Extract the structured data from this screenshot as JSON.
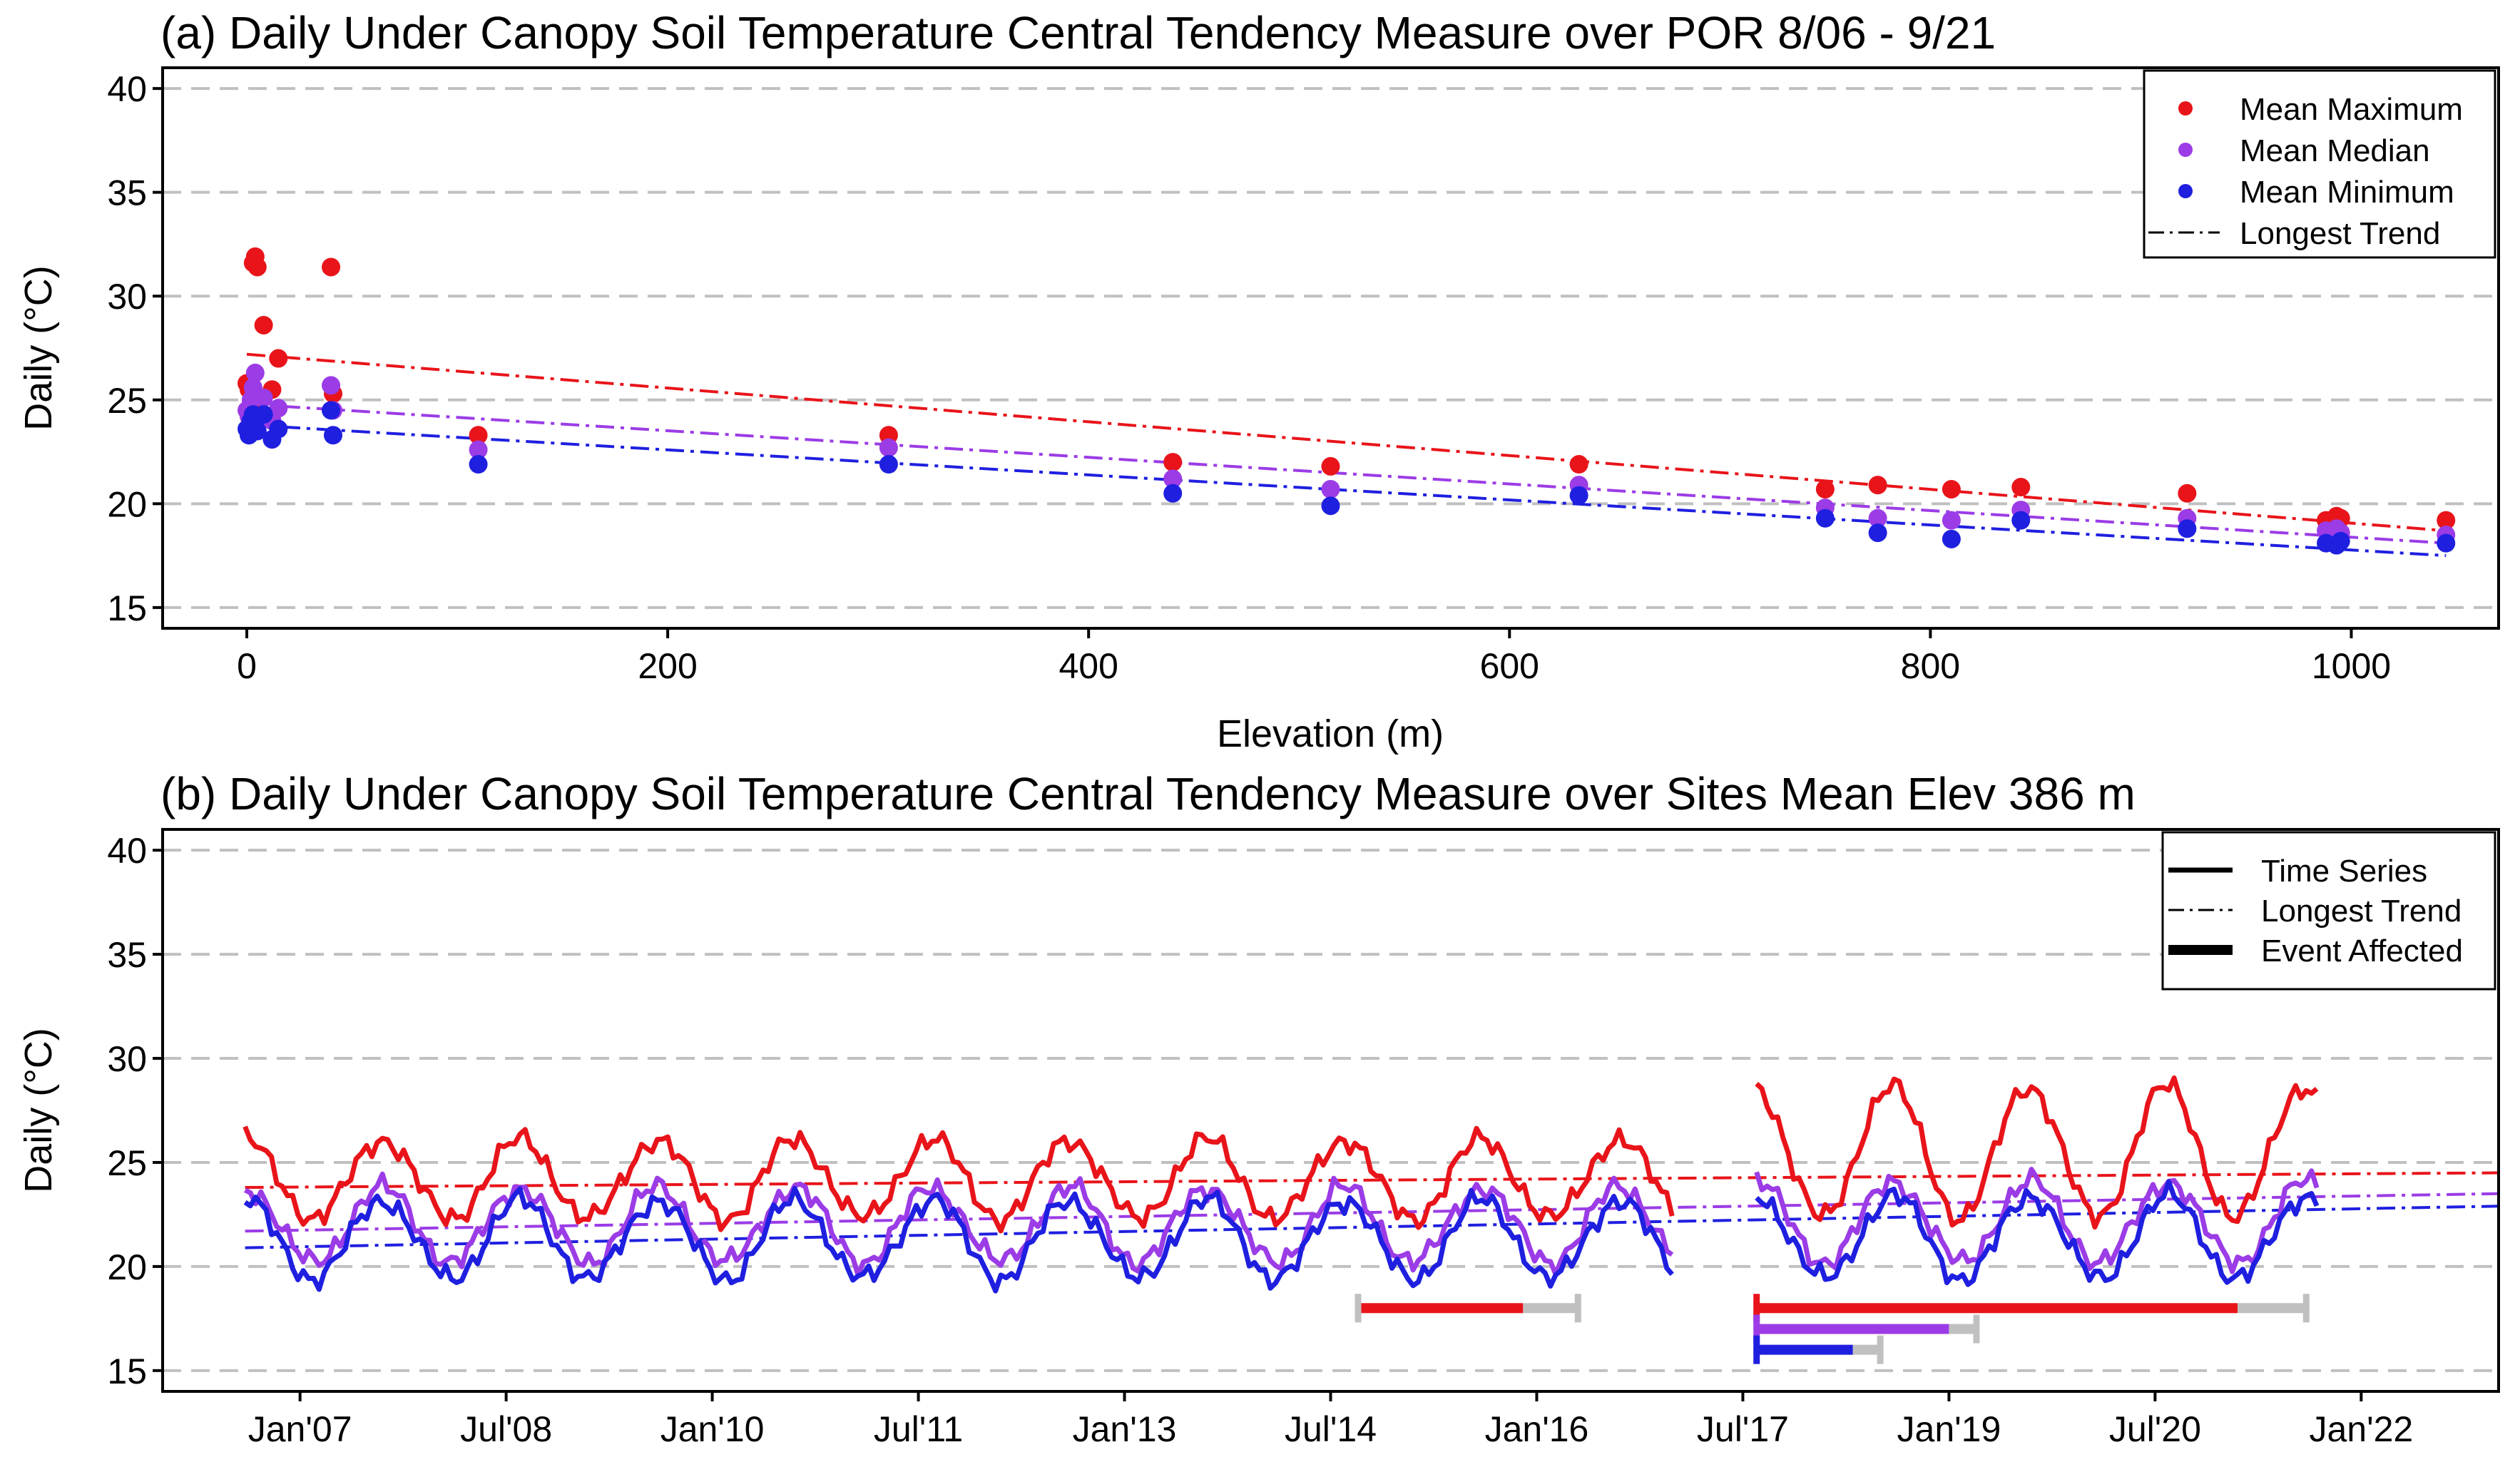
{
  "chart_data": [
    {
      "type": "scatter",
      "title": "(a) Daily Under Canopy Soil Temperature Central Tendency Measure over POR 8/06 - 9/21",
      "xlabel": "Elevation (m)",
      "ylabel": "Daily (°C)",
      "xlim": [
        -40,
        1070
      ],
      "ylim": [
        14,
        41
      ],
      "xticks": [
        0,
        200,
        400,
        600,
        800,
        1000
      ],
      "yticks": [
        15,
        20,
        25,
        30,
        35,
        40
      ],
      "grid": "horizontal dashed",
      "legend_position": "top-right",
      "legend": [
        "Mean Maximum",
        "Mean Median",
        "Mean Minimum",
        "Longest Trend"
      ],
      "colors": {
        "max": "#e8141a",
        "median": "#9b3ce6",
        "min": "#1f1fe0",
        "grid": "#c0c0c0"
      },
      "series": [
        {
          "name": "Mean Maximum",
          "color": "#e8141a",
          "x": [
            0,
            1,
            2,
            3,
            4,
            5,
            8,
            12,
            15,
            40,
            41,
            110,
            305,
            440,
            515,
            633,
            750,
            775,
            810,
            843,
            922,
            988,
            993,
            995,
            1045
          ],
          "y": [
            25.8,
            25.5,
            24.8,
            31.6,
            31.9,
            31.4,
            28.6,
            25.5,
            27.0,
            31.4,
            25.3,
            23.3,
            23.3,
            22.0,
            21.8,
            21.9,
            20.7,
            20.9,
            20.7,
            20.8,
            20.5,
            19.2,
            19.4,
            19.3,
            19.2
          ],
          "trend": [
            27.2,
            18.7
          ]
        },
        {
          "name": "Mean Median",
          "color": "#9b3ce6",
          "x": [
            0,
            1,
            2,
            3,
            4,
            5,
            8,
            12,
            15,
            40,
            41,
            110,
            305,
            440,
            515,
            633,
            750,
            775,
            810,
            843,
            922,
            988,
            993,
            995,
            1045
          ],
          "y": [
            24.5,
            24.2,
            25.0,
            25.6,
            26.3,
            25.2,
            25.1,
            24.0,
            24.6,
            25.7,
            24.5,
            22.6,
            22.7,
            21.2,
            20.7,
            20.9,
            19.8,
            19.3,
            19.2,
            19.7,
            19.3,
            18.7,
            18.8,
            18.6,
            18.5
          ],
          "trend": [
            24.8,
            18.1
          ]
        },
        {
          "name": "Mean Minimum",
          "color": "#1f1fe0",
          "x": [
            0,
            1,
            2,
            3,
            4,
            5,
            8,
            12,
            15,
            40,
            41,
            110,
            305,
            440,
            515,
            633,
            750,
            775,
            810,
            843,
            922,
            988,
            993,
            995,
            1045
          ],
          "y": [
            23.6,
            23.3,
            24.0,
            24.3,
            24.0,
            23.5,
            24.3,
            23.1,
            23.6,
            24.5,
            23.3,
            21.9,
            21.9,
            20.5,
            19.9,
            20.4,
            19.3,
            18.6,
            18.3,
            19.2,
            18.8,
            18.1,
            18.0,
            18.2,
            18.1
          ],
          "trend": [
            23.8,
            17.5
          ]
        }
      ]
    },
    {
      "type": "line",
      "title": "(b) Daily Under Canopy Soil Temperature Central Tendency Measure over Sites Mean Elev 386 m",
      "xlabel": "",
      "ylabel": "Daily (°C)",
      "xlim": [
        2006.0,
        2023.0
      ],
      "ylim": [
        14,
        41
      ],
      "xtick_values": [
        2007.0,
        2008.5,
        2010.0,
        2011.5,
        2013.0,
        2014.5,
        2016.0,
        2017.5,
        2019.0,
        2020.5,
        2022.0
      ],
      "xtick_labels": [
        "Jan'07",
        "Jul'08",
        "Jan'10",
        "Jul'11",
        "Jan'13",
        "Jul'14",
        "Jan'16",
        "Jul'17",
        "Jan'19",
        "Jul'20",
        "Jan'22"
      ],
      "yticks": [
        15,
        20,
        25,
        30,
        35,
        40
      ],
      "grid": "horizontal dashed",
      "legend_position": "top-right",
      "legend": [
        "Time Series",
        "Longest Trend",
        "Event Affected"
      ],
      "series": [
        {
          "name": "Mean Maximum",
          "color": "#e8141a",
          "start": 2006.6,
          "end": 2021.7,
          "mean": 24.2,
          "amp": 1.9,
          "gap": [
            2017.0,
            2017.6
          ],
          "boost_after": 2017.6,
          "boost": 2.6,
          "trend": [
            23.8,
            24.5
          ]
        },
        {
          "name": "Mean Median",
          "color": "#9b3ce6",
          "start": 2006.6,
          "end": 2021.7,
          "mean": 22.0,
          "amp": 1.8,
          "gap": [
            2017.0,
            2017.6
          ],
          "boost_after": 2017.6,
          "boost": 0.3,
          "trend": [
            21.7,
            23.5
          ]
        },
        {
          "name": "Mean Minimum",
          "color": "#1f1fe0",
          "start": 2006.6,
          "end": 2021.7,
          "mean": 21.3,
          "amp": 1.9,
          "gap": [
            2017.0,
            2017.6
          ],
          "boost_after": 2017.6,
          "boost": 0.2,
          "trend": [
            20.9,
            22.9
          ]
        }
      ],
      "event_bars": [
        {
          "name": "Mean Maximum event 2014",
          "color": "#e8141a",
          "y": 18.0,
          "start": 2014.7,
          "end": 2015.9,
          "gray_end": 2016.3
        },
        {
          "name": "Mean Maximum event 2017",
          "color": "#e8141a",
          "y": 18.0,
          "start": 2017.6,
          "end": 2021.1,
          "gray_end": 2021.6
        },
        {
          "name": "Mean Median event 2017",
          "color": "#9b3ce6",
          "y": 17.0,
          "start": 2017.6,
          "end": 2019.0,
          "gray_end": 2019.2
        },
        {
          "name": "Mean Minimum event 2017",
          "color": "#1f1fe0",
          "y": 16.0,
          "start": 2017.6,
          "end": 2018.3,
          "gray_end": 2018.5
        }
      ]
    }
  ]
}
